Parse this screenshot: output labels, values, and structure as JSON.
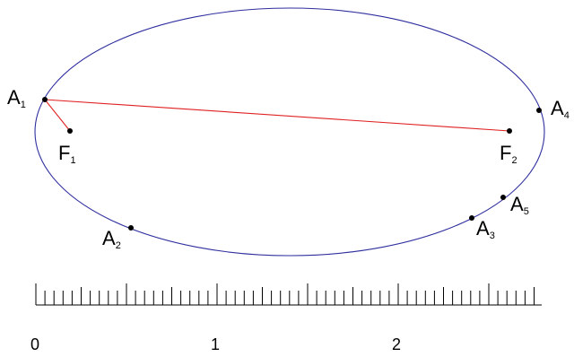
{
  "colors": {
    "ellipse": "#2f2f9f",
    "segment": "#e02020",
    "point": "#000000",
    "ruler": "#000000"
  },
  "points": [
    {
      "id": "A1",
      "letter": "A",
      "sub": "1"
    },
    {
      "id": "F1",
      "letter": "F",
      "sub": "1"
    },
    {
      "id": "F2",
      "letter": "F",
      "sub": "2"
    },
    {
      "id": "A2",
      "letter": "A",
      "sub": "2"
    },
    {
      "id": "A3",
      "letter": "A",
      "sub": "3"
    },
    {
      "id": "A4",
      "letter": "A",
      "sub": "4"
    },
    {
      "id": "A5",
      "letter": "A",
      "sub": "5"
    }
  ],
  "segments": [
    {
      "from": "A1",
      "to": "F1"
    },
    {
      "from": "A1",
      "to": "F2"
    }
  ],
  "ruler": {
    "labels": [
      "0",
      "1",
      "2"
    ]
  }
}
